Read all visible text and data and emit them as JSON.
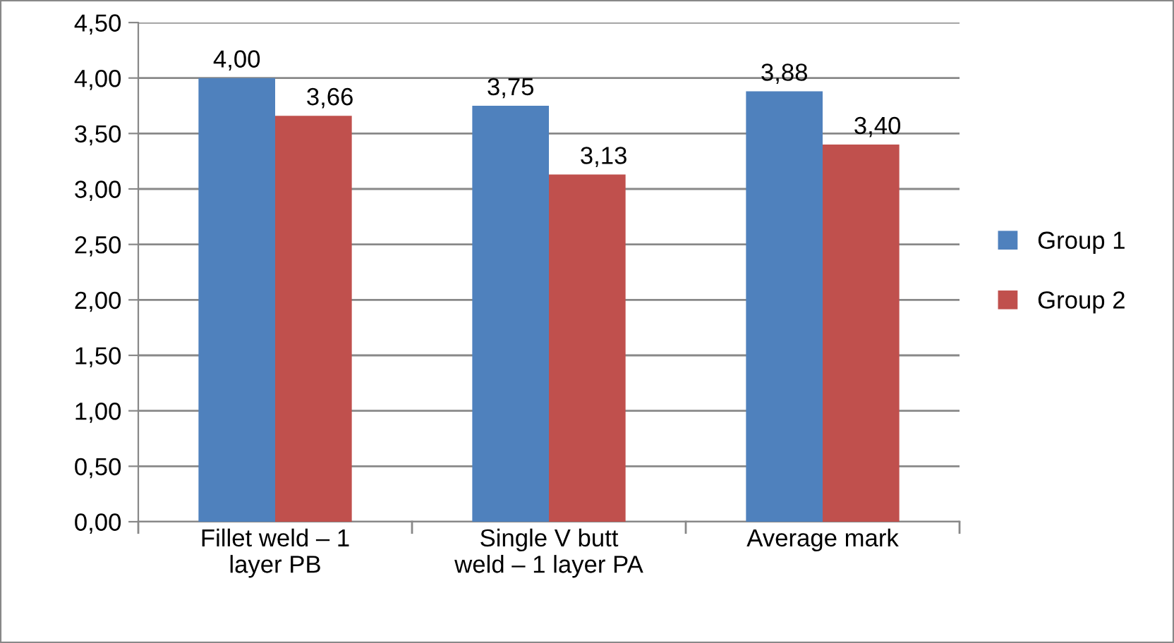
{
  "chart_data": {
    "type": "bar",
    "categories": [
      "Fillet weld – 1\nlayer PB",
      "Single V butt\nweld – 1 layer PA",
      "Average mark"
    ],
    "series": [
      {
        "name": "Group 1",
        "color": "#4f81bd",
        "values": [
          4.0,
          3.75,
          3.88
        ],
        "value_labels": [
          "4,00",
          "3,75",
          "3,88"
        ]
      },
      {
        "name": "Group 2",
        "color": "#c0504d",
        "values": [
          3.66,
          3.13,
          3.4
        ],
        "value_labels": [
          "3,66",
          "3,13",
          "3,40"
        ]
      }
    ],
    "ylim": [
      0,
      4.5
    ],
    "yticks": [
      {
        "value": 0,
        "label": "0,00"
      },
      {
        "value": 0.5,
        "label": "0,50"
      },
      {
        "value": 1,
        "label": "1,00"
      },
      {
        "value": 1.5,
        "label": "1,50"
      },
      {
        "value": 2,
        "label": "2,00"
      },
      {
        "value": 2.5,
        "label": "2,50"
      },
      {
        "value": 3,
        "label": "3,00"
      },
      {
        "value": 3.5,
        "label": "3,50"
      },
      {
        "value": 4,
        "label": "4,00"
      },
      {
        "value": 4.5,
        "label": "4,50"
      }
    ],
    "grid": "y",
    "legend": "right"
  }
}
